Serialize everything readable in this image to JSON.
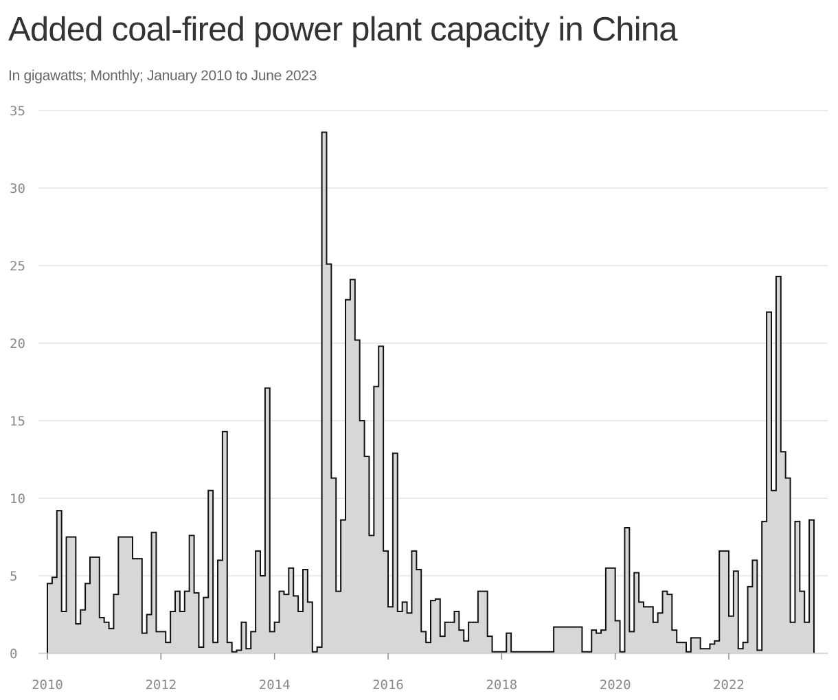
{
  "title": "Added coal-fired power plant capacity in China",
  "subtitle": "In gigawatts; Monthly; January 2010 to June 2023",
  "colors": {
    "fill": "#d6d7d6",
    "line": "#111111",
    "grid": "#dddddd",
    "axis": "#cccccc",
    "title": "#333333",
    "subtitle": "#666666",
    "ticks": "#8a8a8a"
  },
  "chart_data": {
    "type": "area",
    "step": true,
    "title": "Added coal-fired power plant capacity in China",
    "subtitle": "In gigawatts; Monthly; January 2010 to June 2023",
    "xlabel": "",
    "ylabel": "",
    "x_start": "2010-01",
    "x_end": "2023-06",
    "xlim": [
      2010,
      2023.5
    ],
    "ylim": [
      0,
      35
    ],
    "grid": true,
    "legend": "none",
    "x_ticks": [
      "2010",
      "2012",
      "2014",
      "2016",
      "2018",
      "2020",
      "2022"
    ],
    "y_ticks": [
      "0",
      "5",
      "10",
      "15",
      "20",
      "25",
      "30",
      "35"
    ],
    "series": [
      {
        "values": [
          4.5,
          4.9,
          9.2,
          2.7,
          7.5,
          7.5,
          1.9,
          2.8,
          4.5,
          6.2,
          6.2,
          2.3,
          2.0,
          1.6,
          3.8,
          7.5,
          7.5,
          7.5,
          6.1,
          6.1,
          1.3,
          2.5,
          7.8,
          1.4,
          1.4,
          0.7,
          2.7,
          4.0,
          2.7,
          4.0,
          7.6,
          3.9,
          0.4,
          3.6,
          10.5,
          0.7,
          6.0,
          14.3,
          0.7,
          0.1,
          0.2,
          2.0,
          0.3,
          1.4,
          6.6,
          5.0,
          17.1,
          1.4,
          2.0,
          4.0,
          3.8,
          5.5,
          3.7,
          2.7,
          5.4,
          3.3,
          0.1,
          0.4,
          33.6,
          25.1,
          11.3,
          4.0,
          8.6,
          22.8,
          24.1,
          20.2,
          15.0,
          12.7,
          7.6,
          17.2,
          19.8,
          6.6,
          3.0,
          12.9,
          2.7,
          3.3,
          2.6,
          6.6,
          5.4,
          1.4,
          0.7,
          3.4,
          3.5,
          1.1,
          2.0,
          2.0,
          2.7,
          1.5,
          0.8,
          2.0,
          2.0,
          4.0,
          4.0,
          1.1,
          0.1,
          0.1,
          0.1,
          1.3,
          0.1,
          0.1,
          0.1,
          0.1,
          0.1,
          0.1,
          0.1,
          0.1,
          0.1,
          1.7,
          1.7,
          1.7,
          1.7,
          1.7,
          1.7,
          0.1,
          0.1,
          1.5,
          1.3,
          1.5,
          5.5,
          5.5,
          2.1,
          0.1,
          8.1,
          1.4,
          5.2,
          3.3,
          3.0,
          3.0,
          2.0,
          2.6,
          4.0,
          3.8,
          1.5,
          0.7,
          0.7,
          0.1,
          1.0,
          1.0,
          0.3,
          0.3,
          0.6,
          0.8,
          6.6,
          6.6,
          2.4,
          5.3,
          0.3,
          0.7,
          4.3,
          6.0,
          0.2,
          8.5,
          22.0,
          10.5,
          24.3,
          13.0,
          11.3,
          2.0,
          8.5,
          4.0,
          2.0,
          8.6
        ]
      }
    ]
  }
}
